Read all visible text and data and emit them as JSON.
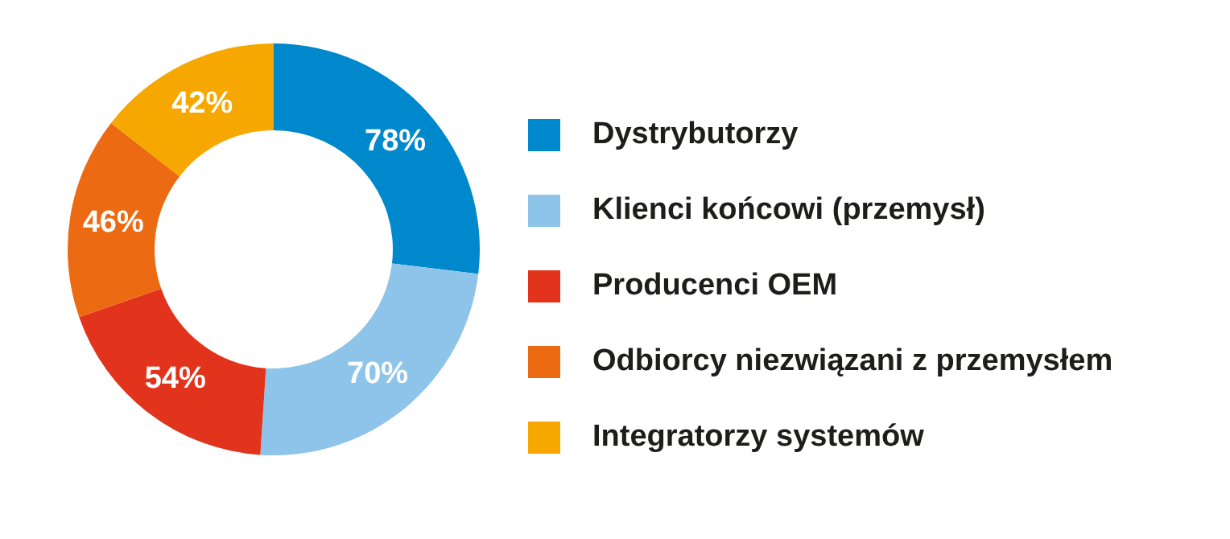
{
  "chart_data": {
    "type": "donut",
    "categories": [
      "Dystrybutorzy",
      "Klienci końcowi (przemysł)",
      "Producenci OEM",
      "Odbiorcy niezwiązani z przemysłem",
      "Integratorzy systemów"
    ],
    "values": [
      78,
      70,
      54,
      46,
      42
    ],
    "colors": [
      "#0088cc",
      "#8ec4ea",
      "#e2341d",
      "#ec6a12",
      "#f7a800"
    ],
    "value_labels": [
      "78%",
      "70%",
      "54%",
      "46%",
      "42%"
    ],
    "legend": "right"
  }
}
